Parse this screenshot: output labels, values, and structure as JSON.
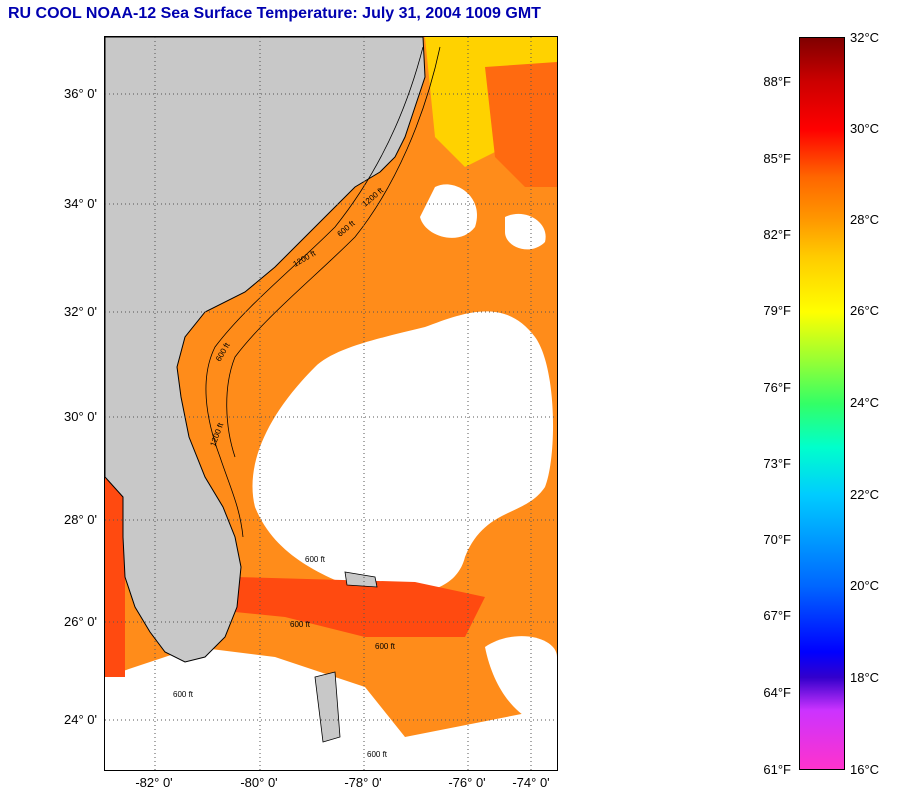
{
  "title": "RU COOL  NOAA-12  Sea Surface Temperature:  July 31, 2004 1009 GMT",
  "map": {
    "lat_labels": [
      "36° 0'",
      "34° 0'",
      "32° 0'",
      "30° 0'",
      "28° 0'",
      "26° 0'",
      "24° 0'"
    ],
    "lon_labels": [
      "-82° 0'",
      "-80° 0'",
      "-78° 0'",
      "-76° 0'",
      "-74° 0'"
    ],
    "contour_labels": [
      "1200 ft",
      "600 ft",
      "1200 ft",
      "600 ft",
      "1200 ft",
      "600 ft",
      "600 ft",
      "600 ft",
      "600 ft",
      "600 ft"
    ],
    "colors": {
      "land": "#c8c8c8",
      "cloud": "#ffffff",
      "warm_water": "#ff8c1a",
      "gulf_stream": "#ff5a10",
      "coastal_yellow": "#ffd200"
    }
  },
  "colorbar": {
    "fahrenheit": [
      "88°F",
      "85°F",
      "82°F",
      "79°F",
      "76°F",
      "73°F",
      "70°F",
      "67°F",
      "64°F",
      "61°F"
    ],
    "celsius": [
      "32°C",
      "30°C",
      "28°C",
      "26°C",
      "24°C",
      "22°C",
      "20°C",
      "18°C",
      "16°C"
    ]
  }
}
